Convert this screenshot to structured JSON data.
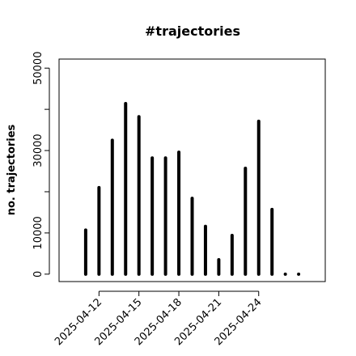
{
  "chart_data": {
    "type": "bar",
    "title": "#trajectories",
    "y_label": "no. trajectories",
    "x": [
      "2025-04-11",
      "2025-04-12",
      "2025-04-13",
      "2025-04-14",
      "2025-04-15",
      "2025-04-16",
      "2025-04-17",
      "2025-04-18",
      "2025-04-19",
      "2025-04-20",
      "2025-04-21",
      "2025-04-22",
      "2025-04-23",
      "2025-04-24",
      "2025-04-25",
      "2025-04-26",
      "2025-04-27"
    ],
    "values": [
      10700,
      21000,
      32500,
      41400,
      38200,
      28200,
      28200,
      29600,
      18400,
      11600,
      3500,
      9400,
      25700,
      37100,
      15700,
      0,
      0
    ],
    "color": "#000000",
    "xlim": [
      "2025-04-09",
      "2025-04-29"
    ],
    "xticks": [
      "2025-04-12",
      "2025-04-15",
      "2025-04-18",
      "2025-04-21",
      "2025-04-24"
    ],
    "ylim": [
      -1800,
      52200
    ],
    "yticks": [
      0,
      10000,
      {
        "value": 20000,
        "label": null
      },
      30000,
      {
        "value": 40000,
        "label": null
      },
      50000
    ]
  }
}
